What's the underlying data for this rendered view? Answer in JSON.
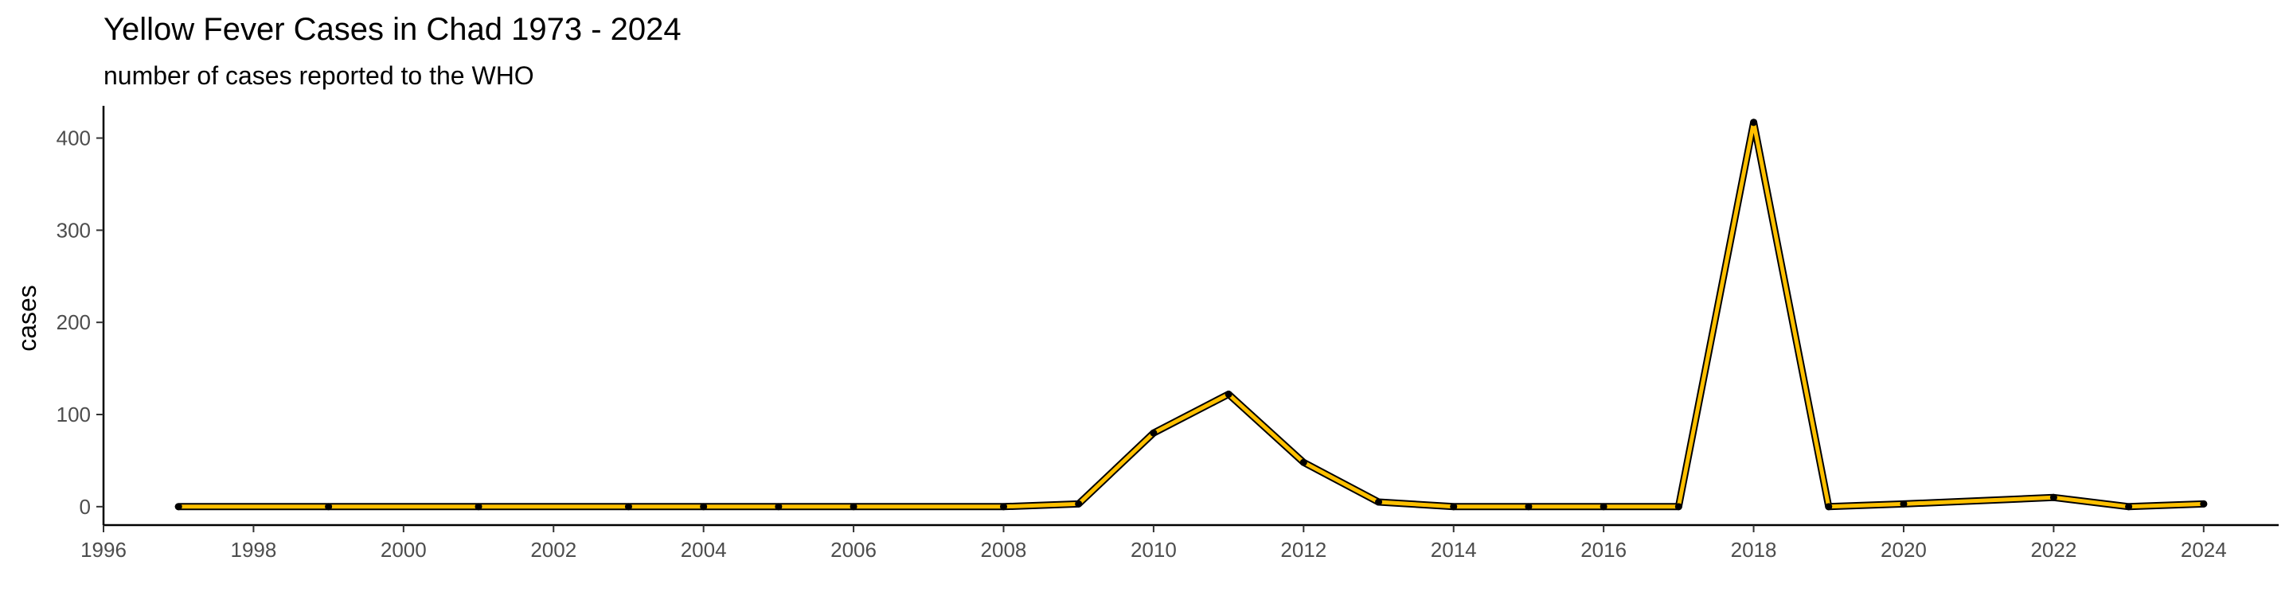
{
  "chart_data": {
    "type": "line",
    "title": "Yellow Fever Cases in Chad 1973 - 2024",
    "subtitle": "number of cases reported to the WHO",
    "xlabel": "",
    "ylabel": "cases",
    "xlim": [
      1996,
      2025
    ],
    "ylim": [
      -20,
      435
    ],
    "x_ticks": [
      1996,
      1998,
      2000,
      2002,
      2004,
      2006,
      2008,
      2010,
      2012,
      2014,
      2016,
      2018,
      2020,
      2022,
      2024
    ],
    "y_ticks": [
      0,
      100,
      200,
      300,
      400
    ],
    "grid": false,
    "legend": "none",
    "series": [
      {
        "color": "#FFC000",
        "x": [
          1997,
          1999,
          2001,
          2003,
          2004,
          2005,
          2006,
          2008,
          2009,
          2010,
          2011,
          2012,
          2013,
          2014,
          2015,
          2016,
          2017,
          2018,
          2019,
          2020,
          2022,
          2023,
          2024
        ],
        "y": [
          0,
          0,
          0,
          0,
          0,
          0,
          0,
          0,
          3,
          80,
          122,
          48,
          5,
          0,
          0,
          0,
          0,
          417,
          0,
          3,
          10,
          0,
          3
        ]
      }
    ]
  }
}
